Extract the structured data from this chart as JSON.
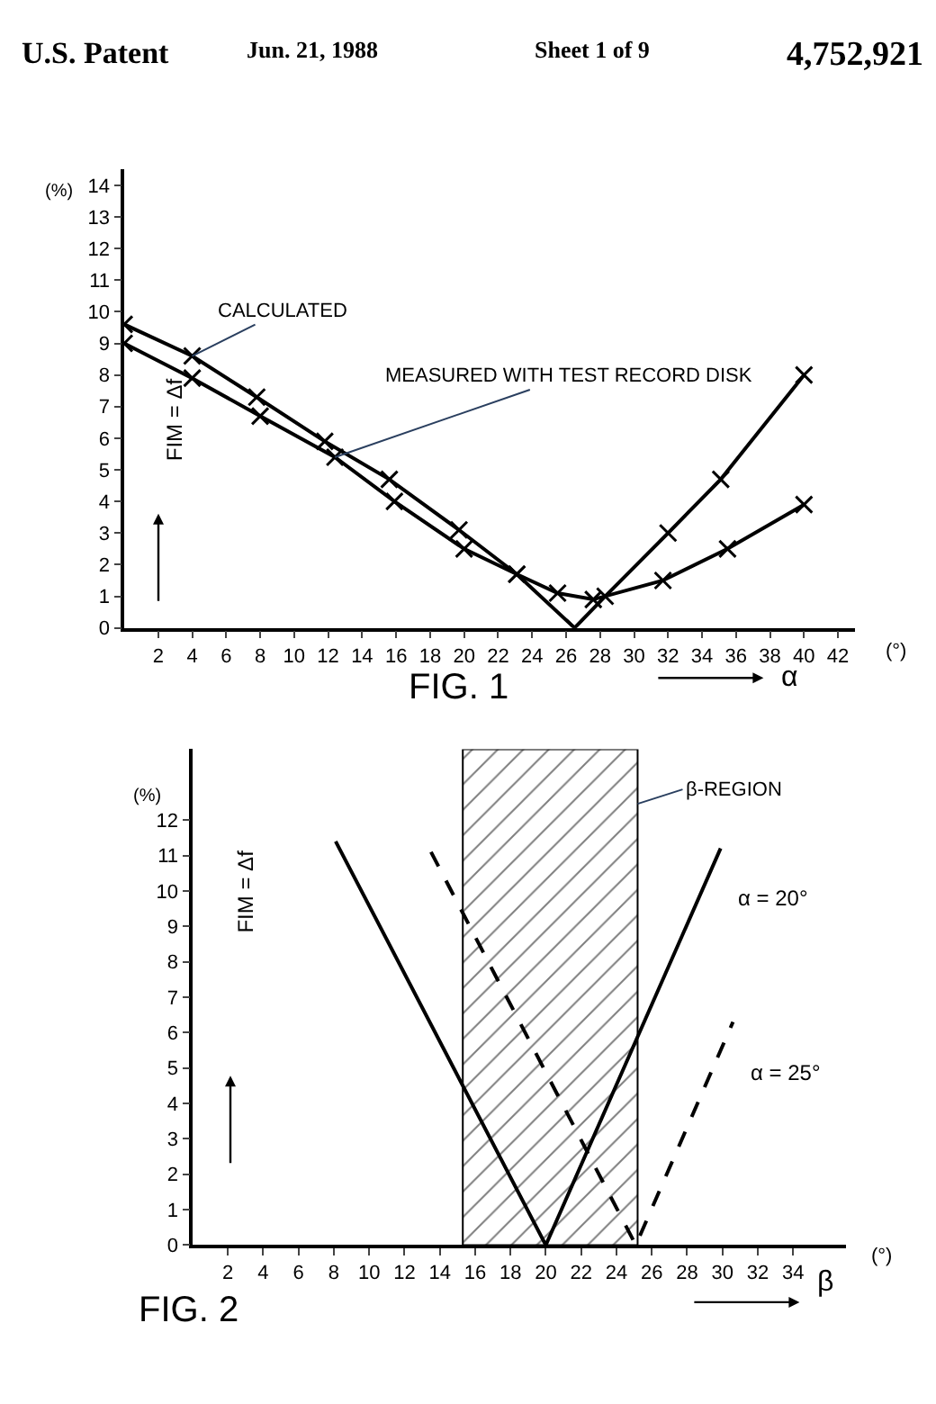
{
  "chart_data": [
    {
      "type": "line",
      "title": "FIG. 1",
      "xlabel": "α",
      "ylabel": "FIM = Δf",
      "annotations": [
        "U.S. Patent",
        "Jun. 21, 1988",
        "Sheet 1 of 9",
        "4,752,921",
        "(%)",
        "(°)"
      ],
      "xlim": [
        0,
        43
      ],
      "xticks": [
        2,
        4,
        6,
        8,
        10,
        12,
        14,
        16,
        18,
        20,
        22,
        24,
        26,
        28,
        30,
        32,
        34,
        36,
        38,
        40,
        42
      ],
      "ylim": [
        0,
        14.5
      ],
      "yticks": [
        0,
        1,
        2,
        3,
        4,
        5,
        6,
        7,
        8,
        9,
        10,
        11,
        12,
        13,
        14
      ],
      "grid": false,
      "legend": false,
      "marker": "cross",
      "series": [
        {
          "name": "CALCULATED",
          "color": "#000000",
          "x": [
            0,
            4,
            7.8,
            11.8,
            15.6,
            19.7,
            23.1,
            26.5,
            28.3,
            32,
            35.1,
            40
          ],
          "values": [
            9.6,
            8.6,
            7.3,
            5.9,
            4.7,
            3.1,
            1.7,
            0,
            1,
            3,
            4.7,
            8
          ]
        },
        {
          "name": "MEASURED WITH TEST RECORD DISK",
          "color": "#000000",
          "x": [
            0,
            4,
            8,
            12.4,
            15.9,
            20,
            23.1,
            25.5,
            27.6,
            31.7,
            35.5,
            40
          ],
          "values": [
            9.0,
            7.9,
            6.7,
            5.4,
            4.0,
            2.5,
            1.7,
            1.1,
            0.9,
            1.5,
            2.5,
            3.9
          ]
        }
      ]
    },
    {
      "type": "line",
      "title": "FIG. 2",
      "xlabel": "β",
      "ylabel": "FIM = Δf",
      "annotations": [
        "(%)",
        "(°)"
      ],
      "xlim": [
        0,
        37
      ],
      "xticks": [
        2,
        4,
        6,
        8,
        10,
        12,
        14,
        16,
        18,
        20,
        22,
        24,
        26,
        28,
        30,
        32,
        34
      ],
      "ylim": [
        0,
        14
      ],
      "yticks": [
        0,
        1,
        2,
        3,
        4,
        5,
        6,
        7,
        8,
        9,
        10,
        11,
        12
      ],
      "grid": false,
      "legend": false,
      "bands": [
        {
          "axis": "x",
          "from": 15.3,
          "to": 25.2,
          "label": "β-REGION",
          "color": "#000000"
        }
      ],
      "series": [
        {
          "name": "α = 20°",
          "color": "#000000",
          "line_style": "solid",
          "x": [
            8.1,
            20,
            29.9
          ],
          "values": [
            11.4,
            0,
            11.2
          ]
        },
        {
          "name": "α = 25°",
          "color": "#000000",
          "line_style": "dashed",
          "x": [
            13.5,
            25.1,
            30.6
          ],
          "values": [
            11.1,
            0,
            6.3
          ]
        }
      ]
    }
  ]
}
